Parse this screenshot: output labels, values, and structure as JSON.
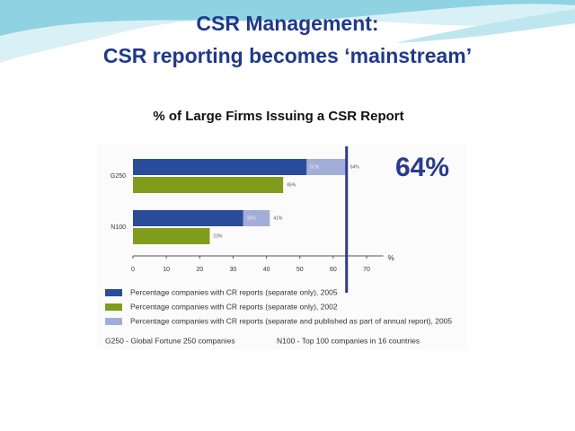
{
  "slide_title": [
    "CSR Management:",
    "CSR reporting becomes ‘mainstream’"
  ],
  "chart_data": {
    "type": "bar",
    "orientation": "horizontal",
    "title": "% of Large Firms Issuing a CSR Report",
    "categories": [
      "G250",
      "N100"
    ],
    "series": [
      {
        "name": "Percentage companies with CR reports (separate and published as part of annual report), 2005",
        "color": "#a3aed8",
        "values": [
          64,
          41
        ],
        "value_labels": [
          "64%",
          "41%"
        ],
        "overlay": true
      },
      {
        "name": "Percentage companies with CR reports (separate only), 2005",
        "color": "#2a4d9b",
        "values": [
          52,
          33
        ],
        "value_labels": [
          "52%",
          "33%"
        ]
      },
      {
        "name": "Percentage companies with CR reports (separate only), 2002",
        "color": "#7f9c1a",
        "values": [
          45,
          23
        ],
        "value_labels": [
          "45%",
          "23%"
        ]
      }
    ],
    "legend_order": [
      1,
      2,
      0
    ],
    "xlim": [
      0,
      75
    ],
    "xticks": [
      0,
      10,
      20,
      30,
      40,
      50,
      60,
      70
    ],
    "xlabel": "%",
    "grid": false,
    "legend": "bottom",
    "annotation": {
      "value": 64,
      "label": "64%",
      "color": "#2b3a8f"
    },
    "footnotes": [
      "G250 - Global Fortune 250 companies",
      "N100 - Top 100 companies in 16 countries"
    ]
  }
}
